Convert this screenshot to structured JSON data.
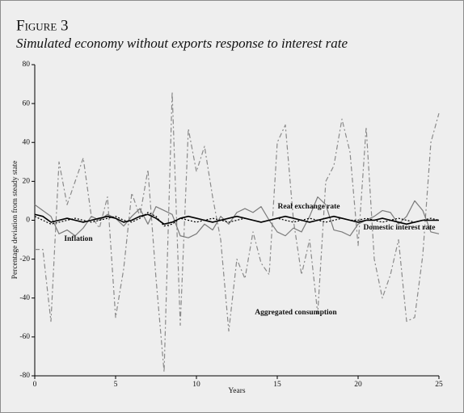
{
  "chart_data": {
    "type": "line",
    "title": "Figure 3",
    "subtitle": "Simulated economy without exports response to interest rate",
    "x_label": "Years",
    "y_label": "Percentage deviation from steady state",
    "x": [
      0,
      0.5,
      1,
      1.5,
      2,
      2.5,
      3,
      3.5,
      4,
      4.5,
      5,
      5.5,
      6,
      6.5,
      7,
      7.5,
      8,
      8.5,
      9,
      9.5,
      10,
      10.5,
      11,
      11.5,
      12,
      12.5,
      13,
      13.5,
      14,
      14.5,
      15,
      15.5,
      16,
      16.5,
      17,
      17.5,
      18,
      18.5,
      19,
      19.5,
      20,
      20.5,
      21,
      21.5,
      22,
      22.5,
      23,
      23.5,
      24,
      24.5,
      25
    ],
    "xlim": [
      0,
      25
    ],
    "xticks": [
      0,
      5,
      10,
      15,
      20,
      25
    ],
    "ylim": [
      -80,
      80
    ],
    "yticks": [
      -80,
      -60,
      -40,
      -20,
      0,
      20,
      40,
      60,
      80
    ],
    "series": [
      {
        "name": "Aggregated consumption",
        "color": "#8a8a8a",
        "dash": "6 3 2 3",
        "values": [
          -15,
          -15,
          -52,
          30,
          8,
          20,
          32,
          2,
          -4,
          12,
          -50,
          -25,
          14,
          2,
          26,
          -30,
          -78,
          66,
          -54,
          47,
          25,
          38,
          12,
          -10,
          -57,
          -20,
          -30,
          -6,
          -22,
          -28,
          40,
          49,
          0,
          -28,
          -10,
          -48,
          20,
          28,
          52,
          35,
          -13,
          48,
          -20,
          -40,
          -28,
          -10,
          -52,
          -50,
          -18,
          40,
          55
        ]
      },
      {
        "name": "Real exchange rate",
        "color": "#7a7a7a",
        "dash": "none",
        "values": [
          8,
          5,
          2,
          -7,
          -5,
          -8,
          -4,
          2,
          0,
          3,
          1,
          -3,
          2,
          6,
          -2,
          7,
          5,
          3,
          -8,
          -9,
          -7,
          -2,
          -5,
          2,
          -2,
          4,
          6,
          4,
          7,
          0,
          -6,
          -8,
          -4,
          -6,
          2,
          12,
          8,
          -5,
          -6,
          -8,
          -2,
          0,
          2,
          5,
          4,
          -2,
          2,
          10,
          5,
          -6,
          -7
        ]
      },
      {
        "name": "Domestic interest rate",
        "color": "#000000",
        "dash": "none",
        "values": [
          3,
          2,
          -1,
          0,
          1,
          0,
          -1,
          0,
          1,
          2,
          1,
          -1,
          0,
          2,
          3,
          1,
          -2,
          -1,
          1,
          2,
          1,
          0,
          -1,
          0,
          1,
          2,
          1,
          0,
          -1,
          0,
          1,
          2,
          1,
          0,
          -1,
          0,
          1,
          2,
          1,
          0,
          -1,
          0,
          0,
          1,
          0,
          -1,
          -2,
          -1,
          0,
          0,
          0
        ]
      },
      {
        "name": "Inflation",
        "color": "#000000",
        "dash": "2 2",
        "values": [
          2,
          0,
          -2,
          -1,
          0,
          1,
          0,
          -1,
          0,
          1,
          2,
          0,
          -1,
          1,
          4,
          2,
          -3,
          -2,
          1,
          0,
          -1,
          0,
          1,
          0,
          -1,
          0,
          1,
          0,
          -1,
          0,
          1,
          0,
          -1,
          0,
          1,
          0,
          -1,
          0,
          1,
          0,
          0,
          1,
          0,
          -1,
          0,
          1,
          0,
          -1,
          0,
          1,
          0
        ]
      }
    ]
  }
}
